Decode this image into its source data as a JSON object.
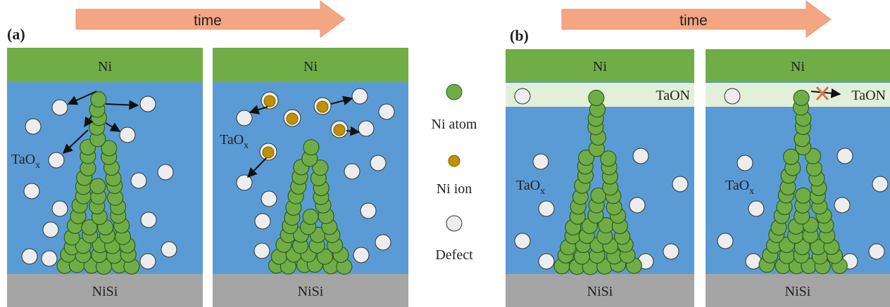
{
  "panels": [
    {
      "label": "(a)",
      "arrow": "time",
      "frames": [
        {
          "top": "Ni",
          "middle": {
            "main": "TaO",
            "sub": "x"
          },
          "bottom": "NiSi"
        },
        {
          "top": "Ni",
          "middle": {
            "main": "TaO",
            "sub": "x"
          },
          "bottom": "NiSi"
        }
      ]
    },
    {
      "label": "(b)",
      "arrow": "time",
      "frames": [
        {
          "top": "Ni",
          "interlayer": "TaON",
          "middle": {
            "main": "TaO",
            "sub": "x"
          },
          "bottom": "NiSi"
        },
        {
          "top": "Ni",
          "interlayer": "TaON",
          "middle": {
            "main": "TaO",
            "sub": "x"
          },
          "bottom": "NiSi"
        }
      ]
    }
  ],
  "legend": [
    {
      "label": "Ni atom"
    },
    {
      "label": "Ni ion"
    },
    {
      "label": "Defect"
    }
  ]
}
